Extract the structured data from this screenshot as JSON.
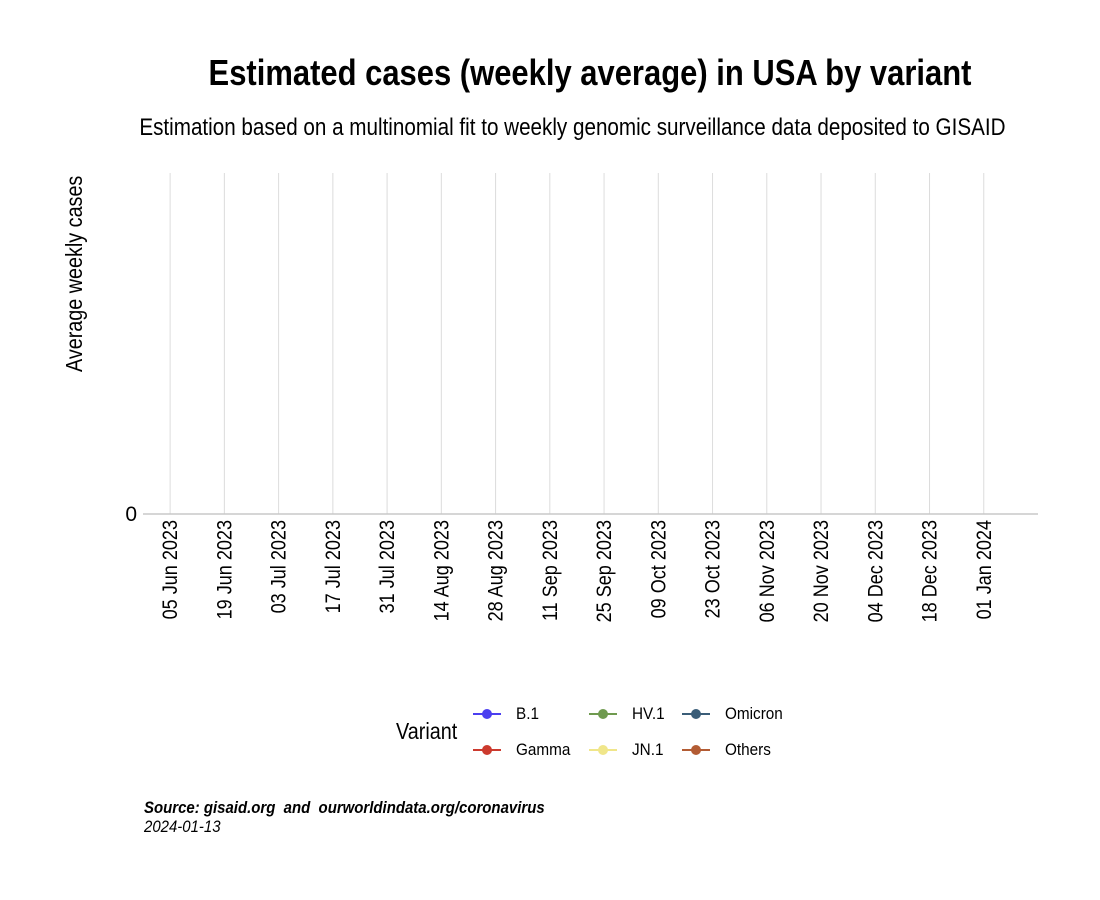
{
  "chart_data": {
    "type": "line",
    "title": "Estimated cases (weekly average) in USA by variant",
    "subtitle": "Estimation based on a multinomial fit to weekly genomic surveillance data deposited to GISAID",
    "ylabel": "Average weekly cases",
    "xlabel": "",
    "x_ticks": [
      "05 Jun 2023",
      "19 Jun 2023",
      "03 Jul 2023",
      "17 Jul 2023",
      "31 Jul 2023",
      "14 Aug 2023",
      "28 Aug 2023",
      "11 Sep 2023",
      "25 Sep 2023",
      "09 Oct 2023",
      "23 Oct 2023",
      "06 Nov 2023",
      "20 Nov 2023",
      "04 Dec 2023",
      "18 Dec 2023",
      "01 Jan 2024"
    ],
    "y_ticks": [
      "0"
    ],
    "xlim": [
      "2023-05-29",
      "2024-01-15"
    ],
    "grid": "vertical",
    "legend": {
      "title": "Variant",
      "placement": "bottom",
      "entries": [
        {
          "name": "B.1",
          "color": "#4b3ff0"
        },
        {
          "name": "HV.1",
          "color": "#6f9a4f"
        },
        {
          "name": "Omicron",
          "color": "#3a5d78"
        },
        {
          "name": "Gamma",
          "color": "#cc3a2e"
        },
        {
          "name": "JN.1",
          "color": "#f0e68a"
        },
        {
          "name": "Others",
          "color": "#b35c34"
        }
      ]
    },
    "series": []
  },
  "footer": {
    "source": "Source: gisaid.org  and  ourworldindata.org/coronavirus",
    "date": "2024-01-13"
  }
}
